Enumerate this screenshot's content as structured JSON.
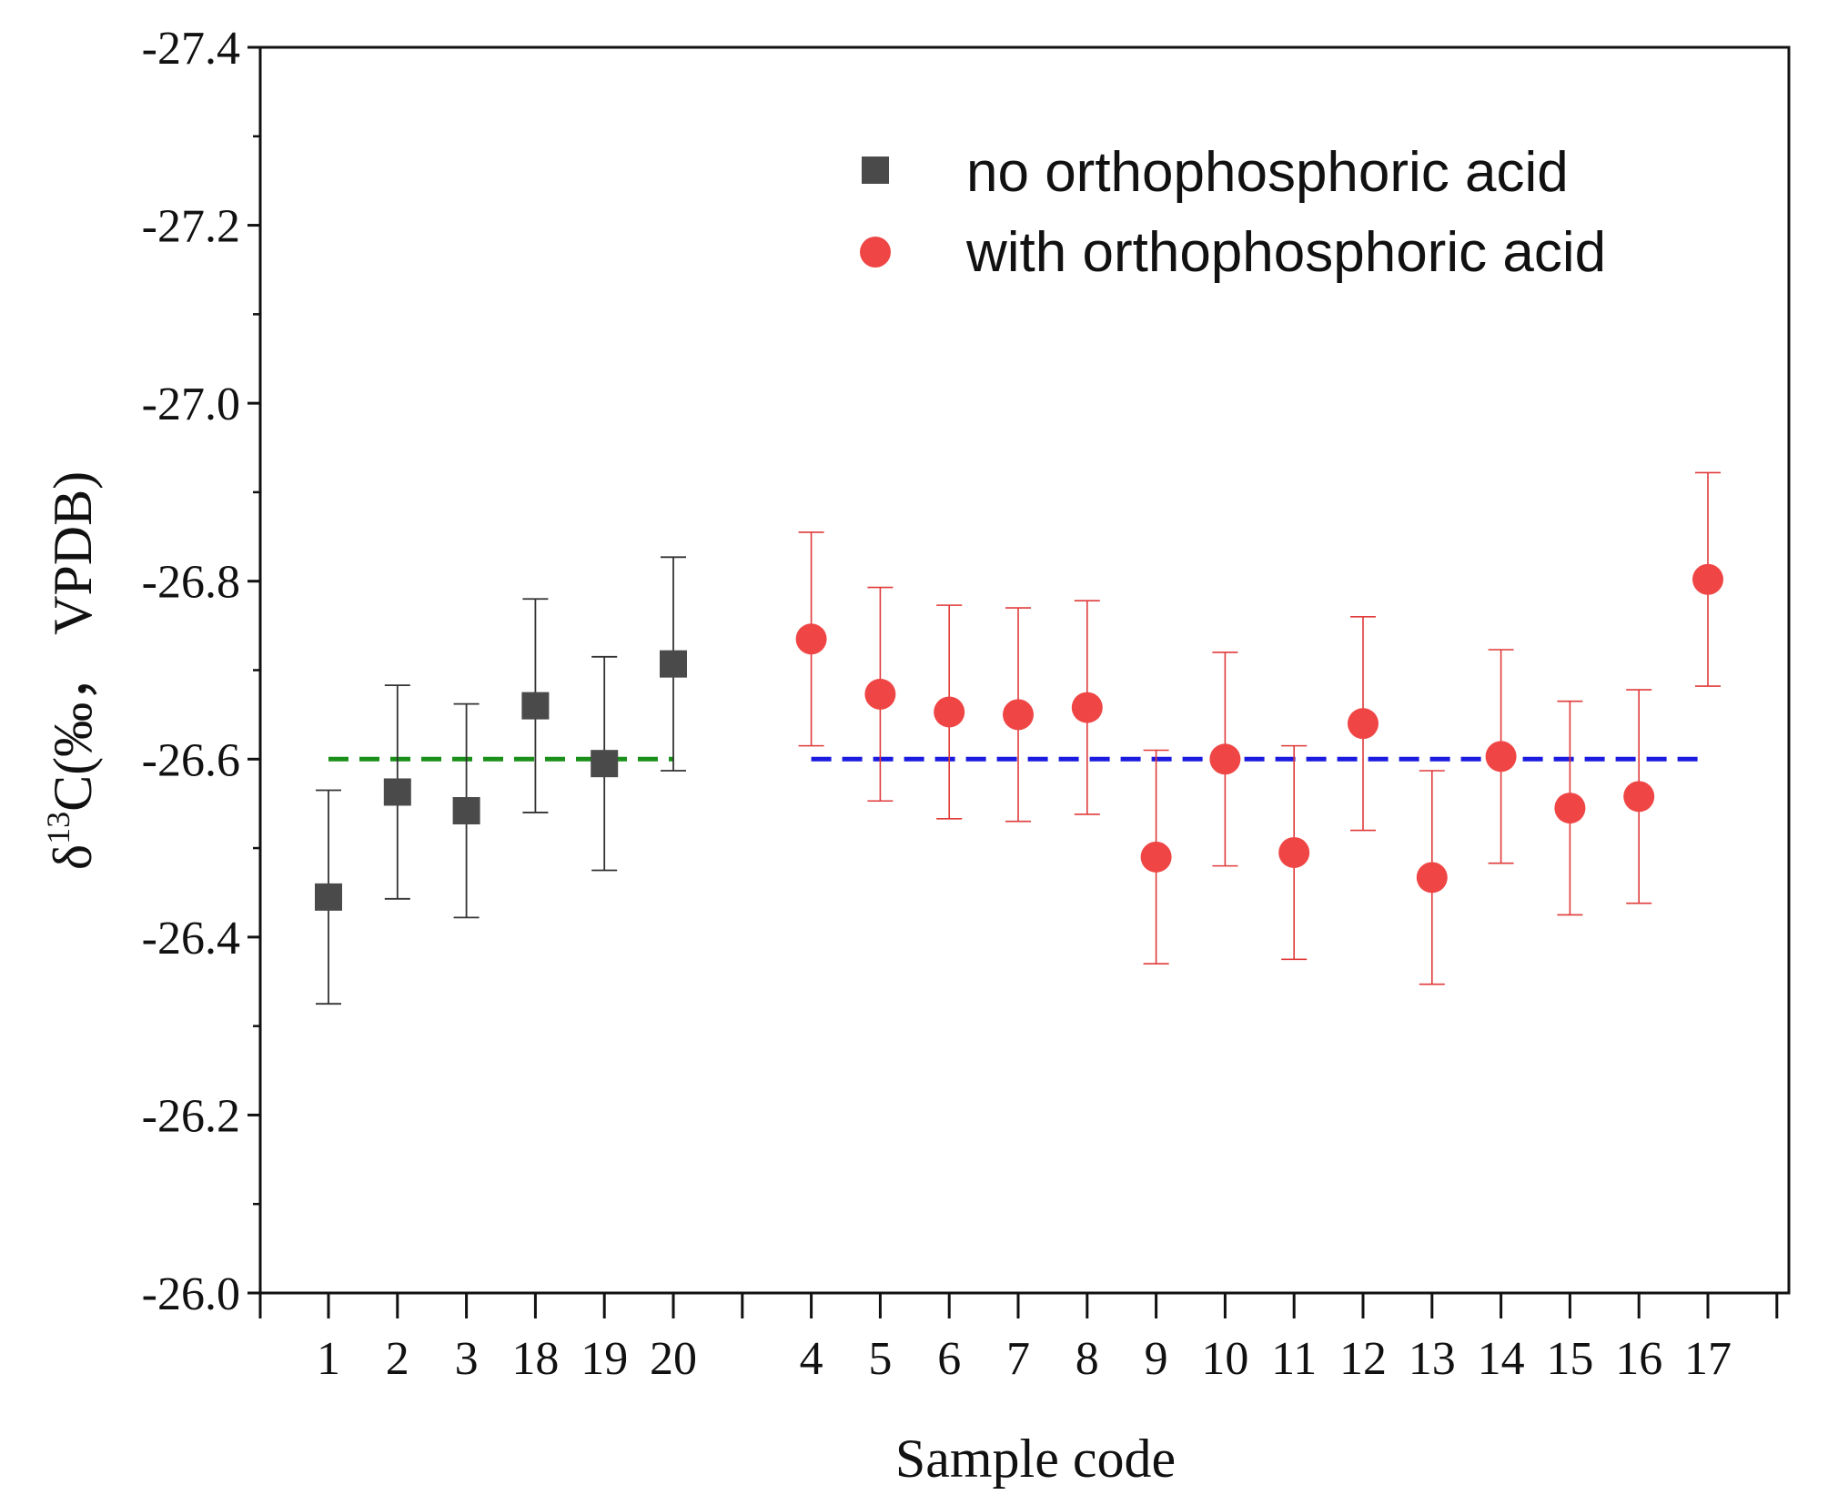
{
  "chart_data": {
    "type": "scatter",
    "title": "",
    "xlabel": "Sample code",
    "ylabel": {
      "prefix": "δ",
      "superscript": "13",
      "suffix": "C(‰，  VPDB)"
    },
    "ylim": [
      -26.0,
      -27.4
    ],
    "y_inverted": true,
    "y_major_ticks": [
      "-26.0",
      "-26.2",
      "-26.4",
      "-26.6",
      "-26.8",
      "-27.0",
      "-27.2",
      "-27.4"
    ],
    "categories": [
      "1",
      "2",
      "3",
      "18",
      "19",
      "20",
      "",
      "4",
      "5",
      "6",
      "7",
      "8",
      "9",
      "10",
      "11",
      "12",
      "13",
      "14",
      "15",
      "16",
      "17",
      ""
    ],
    "legend_position": "top-right",
    "grid": false,
    "series": [
      {
        "name": "no orthophosphoric acid",
        "marker": "square",
        "color": "#4a4a4a",
        "error_color": "#333333",
        "points": [
          {
            "x": "1",
            "y": -26.445,
            "err": 0.12
          },
          {
            "x": "2",
            "y": -26.563,
            "err": 0.12
          },
          {
            "x": "3",
            "y": -26.542,
            "err": 0.12
          },
          {
            "x": "18",
            "y": -26.66,
            "err": 0.12
          },
          {
            "x": "19",
            "y": -26.595,
            "err": 0.12
          },
          {
            "x": "20",
            "y": -26.707,
            "err": 0.12
          }
        ]
      },
      {
        "name": "with orthophosphoric acid",
        "marker": "circle",
        "color": "#f04545",
        "error_color": "#e03a3a",
        "points": [
          {
            "x": "4",
            "y": -26.735,
            "err": 0.12
          },
          {
            "x": "5",
            "y": -26.673,
            "err": 0.12
          },
          {
            "x": "6",
            "y": -26.653,
            "err": 0.12
          },
          {
            "x": "7",
            "y": -26.65,
            "err": 0.12
          },
          {
            "x": "8",
            "y": -26.658,
            "err": 0.12
          },
          {
            "x": "9",
            "y": -26.49,
            "err": 0.12
          },
          {
            "x": "10",
            "y": -26.6,
            "err": 0.12
          },
          {
            "x": "11",
            "y": -26.495,
            "err": 0.12
          },
          {
            "x": "12",
            "y": -26.64,
            "err": 0.12
          },
          {
            "x": "13",
            "y": -26.467,
            "err": 0.12
          },
          {
            "x": "14",
            "y": -26.603,
            "err": 0.12
          },
          {
            "x": "15",
            "y": -26.545,
            "err": 0.12
          },
          {
            "x": "16",
            "y": -26.558,
            "err": 0.12
          },
          {
            "x": "17",
            "y": -26.802,
            "err": 0.12
          }
        ]
      }
    ],
    "reference_lines": [
      {
        "name": "mean-no-acid",
        "y": -26.6,
        "x_from": "1",
        "x_to": "20",
        "color": "#1a8f1a",
        "style": "dashed"
      },
      {
        "name": "mean-with-acid",
        "y": -26.6,
        "x_from": "4",
        "x_to": "17",
        "color": "#1a1ae0",
        "style": "dashed"
      }
    ]
  }
}
